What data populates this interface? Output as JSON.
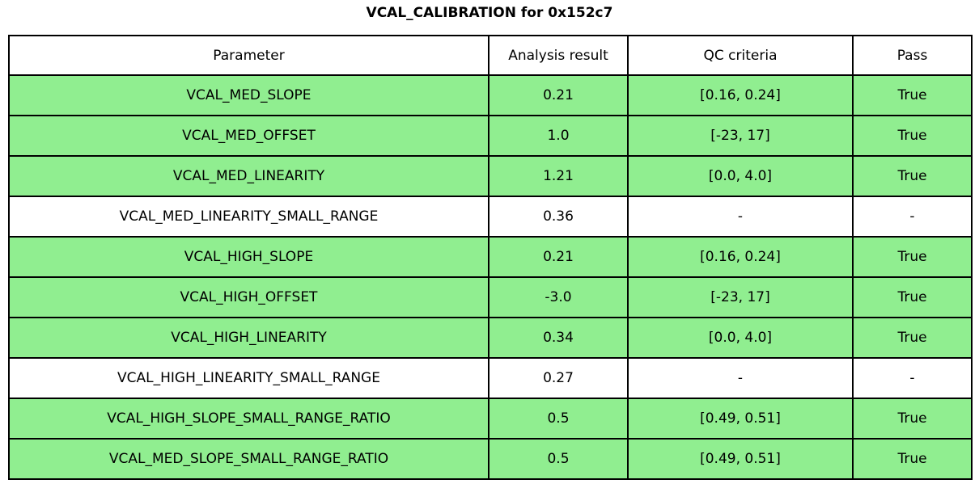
{
  "title": "VCAL_CALIBRATION for 0x152c7",
  "colors": {
    "pass_row_background": "#90EE90",
    "neutral_row_background": "#FFFFFF",
    "border": "#000000",
    "text": "#000000"
  },
  "chart_data": {
    "type": "table",
    "title": "VCAL_CALIBRATION for 0x152c7",
    "columns": [
      "Parameter",
      "Analysis result",
      "QC criteria",
      "Pass"
    ],
    "rows": [
      {
        "parameter": "VCAL_MED_SLOPE",
        "analysis_result": "0.21",
        "qc_criteria": "[0.16, 0.24]",
        "pass": "True",
        "highlight": true
      },
      {
        "parameter": "VCAL_MED_OFFSET",
        "analysis_result": "1.0",
        "qc_criteria": "[-23, 17]",
        "pass": "True",
        "highlight": true
      },
      {
        "parameter": "VCAL_MED_LINEARITY",
        "analysis_result": "1.21",
        "qc_criteria": "[0.0, 4.0]",
        "pass": "True",
        "highlight": true
      },
      {
        "parameter": "VCAL_MED_LINEARITY_SMALL_RANGE",
        "analysis_result": "0.36",
        "qc_criteria": "-",
        "pass": "-",
        "highlight": false
      },
      {
        "parameter": "VCAL_HIGH_SLOPE",
        "analysis_result": "0.21",
        "qc_criteria": "[0.16, 0.24]",
        "pass": "True",
        "highlight": true
      },
      {
        "parameter": "VCAL_HIGH_OFFSET",
        "analysis_result": "-3.0",
        "qc_criteria": "[-23, 17]",
        "pass": "True",
        "highlight": true
      },
      {
        "parameter": "VCAL_HIGH_LINEARITY",
        "analysis_result": "0.34",
        "qc_criteria": "[0.0, 4.0]",
        "pass": "True",
        "highlight": true
      },
      {
        "parameter": "VCAL_HIGH_LINEARITY_SMALL_RANGE",
        "analysis_result": "0.27",
        "qc_criteria": "-",
        "pass": "-",
        "highlight": false
      },
      {
        "parameter": "VCAL_HIGH_SLOPE_SMALL_RANGE_RATIO",
        "analysis_result": "0.5",
        "qc_criteria": "[0.49, 0.51]",
        "pass": "True",
        "highlight": true
      },
      {
        "parameter": "VCAL_MED_SLOPE_SMALL_RANGE_RATIO",
        "analysis_result": "0.5",
        "qc_criteria": "[0.49, 0.51]",
        "pass": "True",
        "highlight": true
      }
    ]
  }
}
